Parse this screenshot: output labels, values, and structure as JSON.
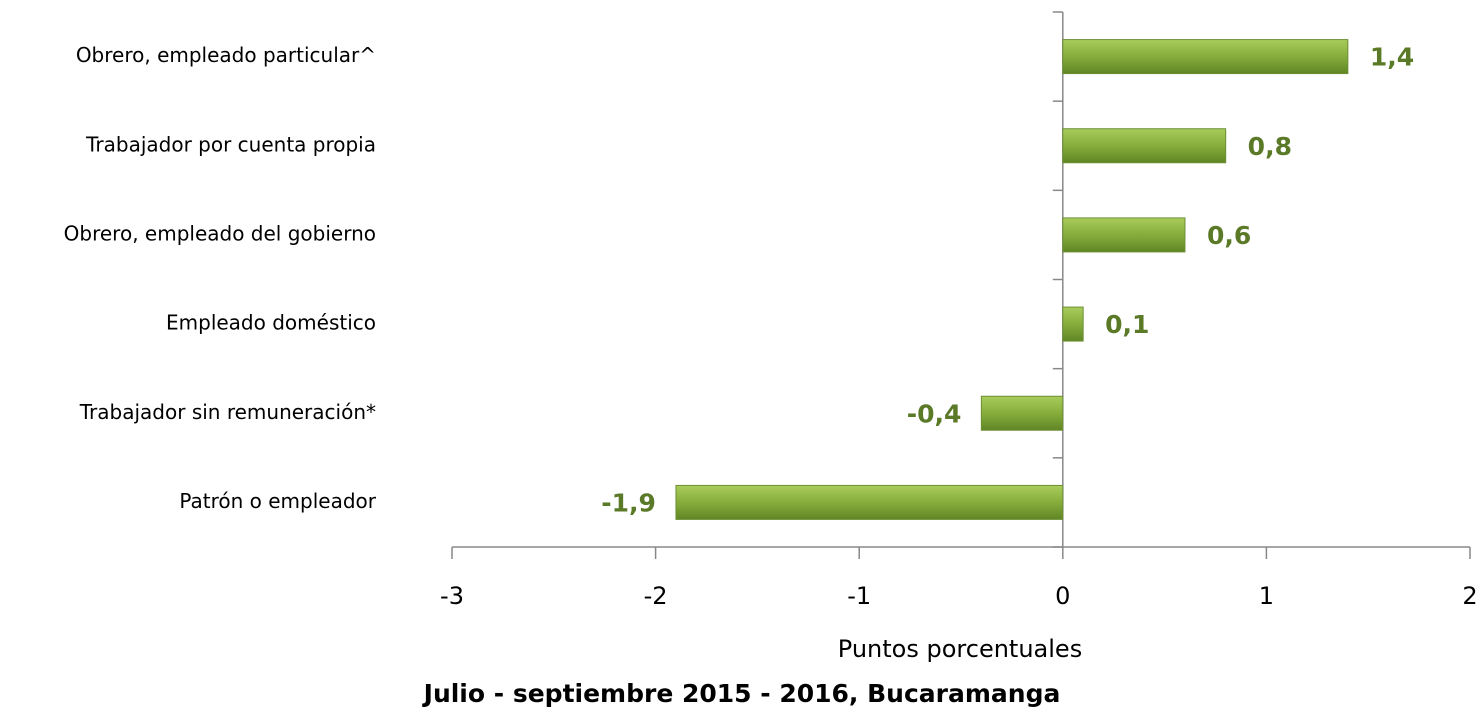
{
  "chart_data": {
    "type": "hbar",
    "categories": [
      "Obrero, empleado particular^",
      "Trabajador por cuenta propia",
      "Obrero, empleado del gobierno",
      "Empleado doméstico",
      "Trabajador sin remuneración*",
      "Patrón o empleador"
    ],
    "values": [
      1.4,
      0.8,
      0.6,
      0.1,
      -0.4,
      -1.9
    ],
    "value_labels": [
      "1,4",
      "0,8",
      "0,6",
      "0,1",
      "-0,4",
      "-1,9"
    ],
    "color": "#7fa535",
    "xlim": [
      -3,
      2
    ],
    "xticks": [
      -3,
      -2,
      -1,
      0,
      1,
      2
    ],
    "xlabel": "Puntos porcentuales",
    "title": "Julio - septiembre 2015 - 2016, Bucaramanga"
  }
}
